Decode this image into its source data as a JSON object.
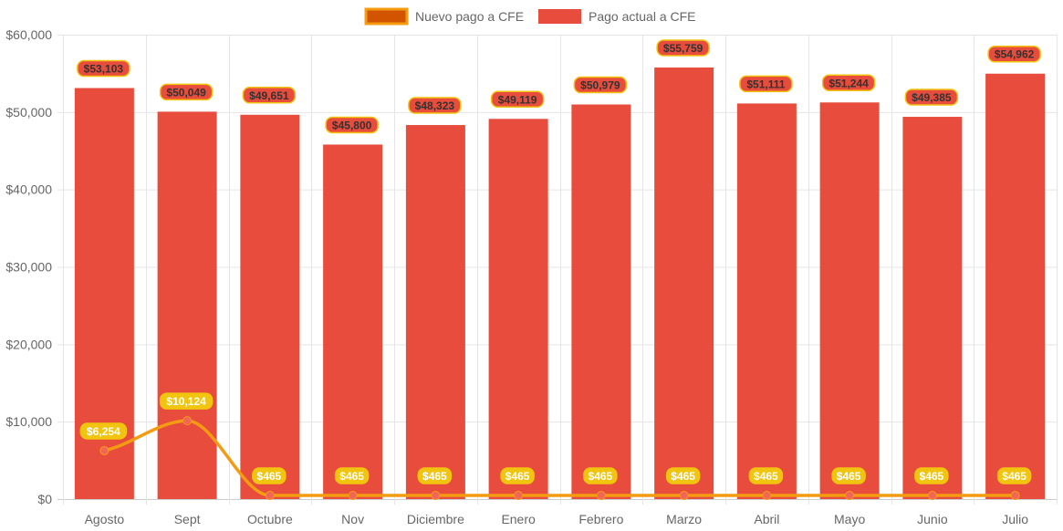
{
  "chart_data": {
    "type": "bar",
    "title": "",
    "xlabel": "",
    "ylabel": "",
    "ylim": [
      0,
      60000
    ],
    "yticks": [
      "$0",
      "$10,000",
      "$20,000",
      "$30,000",
      "$40,000",
      "$50,000",
      "$60,000"
    ],
    "ytick_values": [
      0,
      10000,
      20000,
      30000,
      40000,
      50000,
      60000
    ],
    "grid": true,
    "legend_position": "top-center",
    "categories": [
      "Agosto",
      "Sept",
      "Octubre",
      "Nov",
      "Diciembre",
      "Enero",
      "Febrero",
      "Marzo",
      "Abril",
      "Mayo",
      "Junio",
      "Julio"
    ],
    "series": [
      {
        "name": "Nuevo pago a CFE",
        "type": "line",
        "color": "#f39c12",
        "fill": "#d35400",
        "point_color": "#f1655a",
        "label_bg": "#f1c40f",
        "values": [
          6254,
          10124,
          465,
          465,
          465,
          465,
          465,
          465,
          465,
          465,
          465,
          465
        ],
        "labels": [
          "$6,254",
          "$10,124",
          "$465",
          "$465",
          "$465",
          "$465",
          "$465",
          "$465",
          "$465",
          "$465",
          "$465",
          "$465"
        ]
      },
      {
        "name": "Pago actual a CFE",
        "type": "bar",
        "color": "#e74c3c",
        "label_border": "#f1c40f",
        "values": [
          53103,
          50049,
          49651,
          45800,
          48323,
          49119,
          50979,
          55759,
          51111,
          51244,
          49385,
          54962
        ],
        "labels": [
          "$53,103",
          "$50,049",
          "$49,651",
          "$45,800",
          "$48,323",
          "$49,119",
          "$50,979",
          "$55,759",
          "$51,111",
          "$51,244",
          "$49,385",
          "$54,962"
        ]
      }
    ]
  }
}
